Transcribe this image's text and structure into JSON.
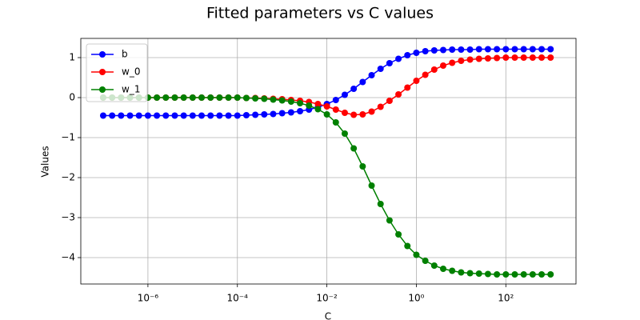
{
  "chart_data": {
    "type": "line",
    "title": "Fitted parameters vs C values",
    "xlabel": "C",
    "ylabel": "Values",
    "xscale": "log",
    "grid": true,
    "legend": "upper left",
    "x": [
      1e-07,
      1.585e-07,
      2.512e-07,
      3.981e-07,
      6.31e-07,
      1e-06,
      1.585e-06,
      2.512e-06,
      3.981e-06,
      6.31e-06,
      1e-05,
      1.585e-05,
      2.512e-05,
      3.981e-05,
      6.31e-05,
      0.0001,
      0.0001585,
      0.0002512,
      0.0003981,
      0.000631,
      0.001,
      0.001585,
      0.002512,
      0.003981,
      0.00631,
      0.01,
      0.01585,
      0.02512,
      0.03981,
      0.0631,
      0.1,
      0.1585,
      0.2512,
      0.3981,
      0.631,
      1,
      1.585,
      2.512,
      3.981,
      6.31,
      10,
      15.85,
      25.12,
      39.81,
      63.1,
      100,
      158.5,
      251.2,
      398.1,
      631,
      1000
    ],
    "series": [
      {
        "name": "b",
        "color": "#0000ff",
        "values": [
          -0.45,
          -0.45,
          -0.45,
          -0.45,
          -0.45,
          -0.45,
          -0.45,
          -0.45,
          -0.45,
          -0.45,
          -0.45,
          -0.45,
          -0.45,
          -0.45,
          -0.45,
          -0.45,
          -0.44,
          -0.43,
          -0.42,
          -0.41,
          -0.39,
          -0.37,
          -0.34,
          -0.3,
          -0.24,
          -0.16,
          -0.06,
          0.07,
          0.22,
          0.39,
          0.56,
          0.72,
          0.86,
          0.97,
          1.06,
          1.12,
          1.16,
          1.18,
          1.19,
          1.2,
          1.2,
          1.2,
          1.21,
          1.21,
          1.21,
          1.21,
          1.21,
          1.21,
          1.21,
          1.21,
          1.21
        ]
      },
      {
        "name": "w_0",
        "color": "#ff0000",
        "values": [
          0,
          0,
          0,
          0,
          0,
          0,
          0,
          0,
          0,
          0,
          0,
          0,
          0,
          0,
          0,
          0,
          -0.01,
          -0.01,
          -0.02,
          -0.03,
          -0.04,
          -0.06,
          -0.08,
          -0.11,
          -0.16,
          -0.22,
          -0.3,
          -0.38,
          -0.43,
          -0.42,
          -0.35,
          -0.23,
          -0.08,
          0.08,
          0.25,
          0.42,
          0.57,
          0.7,
          0.8,
          0.87,
          0.92,
          0.95,
          0.97,
          0.98,
          0.99,
          1,
          1,
          1,
          1,
          1,
          1
        ]
      },
      {
        "name": "w_1",
        "color": "#008000",
        "values": [
          0,
          0,
          0,
          0,
          0,
          0,
          0,
          0,
          0,
          0,
          0,
          0,
          0,
          0,
          0,
          0,
          -0.01,
          -0.02,
          -0.03,
          -0.05,
          -0.07,
          -0.1,
          -0.14,
          -0.2,
          -0.29,
          -0.42,
          -0.62,
          -0.9,
          -1.27,
          -1.72,
          -2.2,
          -2.66,
          -3.07,
          -3.42,
          -3.71,
          -3.93,
          -4.08,
          -4.2,
          -4.28,
          -4.33,
          -4.37,
          -4.39,
          -4.4,
          -4.41,
          -4.42,
          -4.42,
          -4.42,
          -4.42,
          -4.42,
          -4.42,
          -4.42
        ]
      }
    ],
    "xlim": [
      3.16e-08,
      3700
    ],
    "xticks": [
      {
        "value": 1e-06,
        "label": "10⁻⁶"
      },
      {
        "value": 0.0001,
        "label": "10⁻⁴"
      },
      {
        "value": 0.01,
        "label": "10⁻²"
      },
      {
        "value": 1,
        "label": "10⁰"
      },
      {
        "value": 100,
        "label": "10²"
      }
    ],
    "ylim": [
      -4.66,
      1.48
    ],
    "yticks": [
      1,
      0,
      {
        "value": -1,
        "label": "−1"
      },
      {
        "value": -2,
        "label": "−2"
      },
      {
        "value": -3,
        "label": "−3"
      },
      {
        "value": -4,
        "label": "−4"
      }
    ]
  }
}
